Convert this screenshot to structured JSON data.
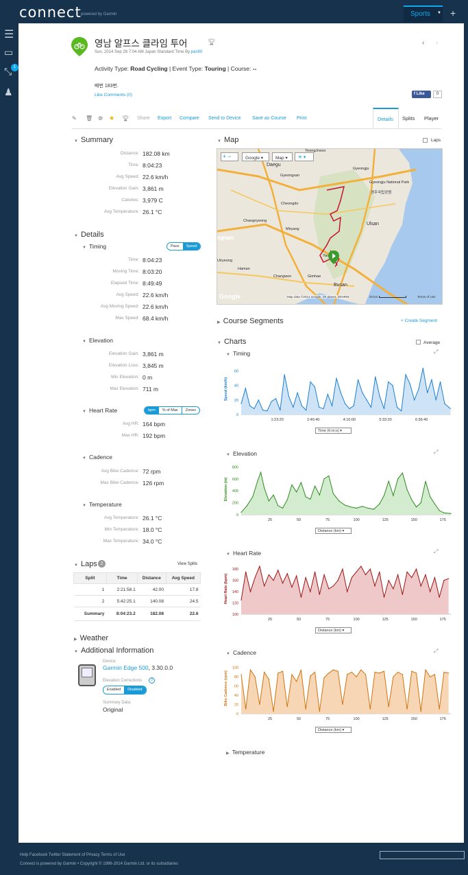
{
  "topbar": {
    "logo": "connect",
    "logo_sub": "powered by Garmin",
    "sports_label": "Sports",
    "plus_label": "+"
  },
  "sidenav": {
    "badge": "1"
  },
  "activity": {
    "title": "영남 알프스 클라임 투어",
    "datetime": "Sun, 2014 Sep 28 7:04 AM Japan Standard Time By",
    "author": "pan00",
    "meta_prefix1": "Activity Type:",
    "type": "Road Cycling",
    "meta_prefix2": "| Event Type:",
    "event": "Touring",
    "meta_prefix3": "| Course:",
    "course": "--",
    "note": "배번 183번.",
    "likes": "Like Comments (0)",
    "fb_like": "Like",
    "fb_count": "0"
  },
  "toolbar": {
    "share": "Share",
    "export": "Export",
    "compare": "Compare",
    "send": "Send to Device",
    "save_course": "Save as Course",
    "print": "Print"
  },
  "tabs": {
    "details": "Details",
    "splits": "Splits",
    "player": "Player"
  },
  "summary": {
    "title": "Summary",
    "rows": [
      {
        "label": "Distance:",
        "value": "182.08 km"
      },
      {
        "label": "Time:",
        "value": "8:04:23"
      },
      {
        "label": "Avg Speed:",
        "value": "22.6 km/h"
      },
      {
        "label": "Elevation Gain:",
        "value": "3,861 m"
      },
      {
        "label": "Calories:",
        "value": "3,979 C"
      },
      {
        "label": "Avg Temperature:",
        "value": "26.1 °C"
      }
    ]
  },
  "details": {
    "title": "Details",
    "timing": {
      "title": "Timing",
      "pace": "Pace",
      "speed": "Speed",
      "rows": [
        {
          "label": "Time:",
          "value": "8:04:23"
        },
        {
          "label": "Moving Time:",
          "value": "8:03:20"
        },
        {
          "label": "Elapsed Time:",
          "value": "8:49:49"
        },
        {
          "label": "Avg Speed:",
          "value": "22.6 km/h"
        },
        {
          "label": "Avg Moving Speed:",
          "value": "22.6 km/h"
        },
        {
          "label": "Max Speed:",
          "value": "68.4 km/h"
        }
      ]
    },
    "elevation": {
      "title": "Elevation",
      "rows": [
        {
          "label": "Elevation Gain:",
          "value": "3,861 m"
        },
        {
          "label": "Elevation Loss:",
          "value": "3,845 m"
        },
        {
          "label": "Min Elevation:",
          "value": "0 m"
        },
        {
          "label": "Max Elevation:",
          "value": "711 m"
        }
      ]
    },
    "heartrate": {
      "title": "Heart Rate",
      "bpm": "bpm",
      "pctmax": "% of Max",
      "zones": "Zones",
      "rows": [
        {
          "label": "Avg HR:",
          "value": "164 bpm"
        },
        {
          "label": "Max HR:",
          "value": "192 bpm"
        }
      ]
    },
    "cadence": {
      "title": "Cadence",
      "rows": [
        {
          "label": "Avg Bike Cadence:",
          "value": "72 rpm"
        },
        {
          "label": "Max Bike Cadence:",
          "value": "126 rpm"
        }
      ]
    },
    "temperature": {
      "title": "Temperature",
      "rows": [
        {
          "label": "Avg Temperature:",
          "value": "26.1 °C"
        },
        {
          "label": "Min Temperature:",
          "value": "18.0 °C"
        },
        {
          "label": "Max Temperature:",
          "value": "34.0 °C"
        }
      ]
    }
  },
  "laps": {
    "title": "Laps",
    "count": "2",
    "view_splits": "View Splits",
    "headers": [
      "Split",
      "Time",
      "Distance",
      "Avg Speed"
    ],
    "rows": [
      [
        "1",
        "2:21:58.1",
        "42.00",
        "17.8"
      ],
      [
        "2",
        "5:42:25.1",
        "140.08",
        "24.5"
      ]
    ],
    "summary": [
      "Summary",
      "8:04:23.2",
      "182.08",
      "22.6"
    ]
  },
  "weather": {
    "title": "Weather"
  },
  "additional": {
    "title": "Additional Information",
    "device_label": "Device:",
    "device": "Garmin Edge 500",
    "version": ", 3.30.0.0",
    "elev_corr_label": "Elevation Corrections",
    "enabled": "Enabled",
    "disabled": "Disabled",
    "summary_data_label": "Summary Data:",
    "summary_data": "Original"
  },
  "map": {
    "title": "Map",
    "laps": "Laps",
    "google": "Google",
    "map_btn": "Map",
    "places": [
      "Yeongcheon",
      "Daegu",
      "Gyeongju",
      "Gyeongsan",
      "Gyeongju National Park",
      "경주국립공원",
      "Cheongdo",
      "Changnyeong",
      "Ulsan",
      "Miryang",
      "Yangsan",
      "Uiryeong",
      "Haman",
      "Changwon",
      "Gimhae",
      "Busan",
      "ngnam"
    ],
    "attribution": "Map data ©2014 Google, SK planet, ZENRIN",
    "scale": "20 km",
    "terms": "Terms of Use"
  },
  "segments": {
    "title": "Course Segments",
    "create": "+ Create Segment"
  },
  "charts": {
    "title": "Charts",
    "average": "Average",
    "time_select": "Time (h:m:s)",
    "dist_select": "Distance (km)",
    "temperature_title": "Temperature"
  },
  "chart_data": [
    {
      "type": "area",
      "title": "Timing",
      "ylabel": "Speed (km/h)",
      "xlabel": "Time (h:m:s)",
      "ylim": [
        0,
        70
      ],
      "yticks": [
        0,
        20,
        40,
        60
      ],
      "xtick_labels": [
        "1:23:20",
        "2:46:40",
        "4:10:00",
        "5:33:20",
        "6:56:40"
      ],
      "xlim": [
        0,
        29063
      ],
      "color": "#1a7ed3",
      "fill": "#cfe3f7",
      "x": [
        0,
        600,
        1200,
        1800,
        2400,
        3000,
        3600,
        4200,
        4800,
        5400,
        6000,
        6600,
        7200,
        7800,
        8400,
        9000,
        9600,
        10200,
        10800,
        11400,
        12000,
        12600,
        13200,
        13800,
        14400,
        15000,
        15600,
        16200,
        16800,
        17400,
        18000,
        18600,
        19200,
        19800,
        20400,
        21000,
        21600,
        22200,
        22800,
        23400,
        24000,
        24600,
        25200,
        25800,
        26400,
        27000,
        27600,
        28200,
        29000
      ],
      "y": [
        15,
        36,
        12,
        8,
        20,
        6,
        5,
        18,
        22,
        6,
        55,
        25,
        10,
        30,
        12,
        6,
        45,
        38,
        10,
        8,
        28,
        12,
        50,
        30,
        15,
        8,
        12,
        48,
        30,
        20,
        10,
        52,
        25,
        8,
        45,
        40,
        10,
        5,
        55,
        42,
        20,
        35,
        64,
        30,
        48,
        20,
        45,
        15,
        8
      ]
    },
    {
      "type": "area",
      "title": "Elevation",
      "ylabel": "Elevation (m)",
      "xlabel": "Distance (km)",
      "ylim": [
        0,
        850
      ],
      "yticks": [
        0,
        200,
        400,
        600,
        800
      ],
      "xticks": [
        25,
        50,
        75,
        100,
        125,
        150,
        175
      ],
      "xlim": [
        0,
        182
      ],
      "color": "#2e8b1e",
      "fill": "#d3ebcf",
      "x": [
        0,
        5,
        10,
        14,
        17,
        20,
        24,
        28,
        32,
        36,
        40,
        44,
        48,
        52,
        56,
        60,
        64,
        68,
        72,
        76,
        80,
        85,
        90,
        95,
        100,
        105,
        110,
        115,
        120,
        124,
        128,
        132,
        136,
        140,
        144,
        148,
        152,
        156,
        160,
        164,
        168,
        172,
        176,
        182
      ],
      "y": [
        40,
        150,
        300,
        550,
        710,
        450,
        230,
        330,
        150,
        110,
        250,
        500,
        380,
        540,
        300,
        260,
        480,
        330,
        600,
        650,
        350,
        230,
        160,
        130,
        110,
        140,
        110,
        90,
        180,
        320,
        560,
        320,
        600,
        700,
        420,
        250,
        130,
        200,
        560,
        300,
        180,
        70,
        30,
        20
      ]
    },
    {
      "type": "area",
      "title": "Heart Rate",
      "ylabel": "Heart Rate (bpm)",
      "xlabel": "Distance (km)",
      "ylim": [
        100,
        190
      ],
      "yticks": [
        100,
        120,
        140,
        160,
        180
      ],
      "xticks": [
        25,
        50,
        75,
        100,
        125,
        150,
        175
      ],
      "xlim": [
        0,
        182
      ],
      "color": "#9b1111",
      "fill": "#efc9c9",
      "x": [
        0,
        4,
        8,
        12,
        16,
        20,
        24,
        28,
        32,
        36,
        40,
        44,
        48,
        52,
        56,
        60,
        64,
        68,
        72,
        76,
        80,
        84,
        88,
        92,
        96,
        100,
        104,
        108,
        112,
        116,
        120,
        124,
        128,
        132,
        136,
        140,
        144,
        148,
        152,
        156,
        160,
        164,
        168,
        172,
        176,
        180
      ],
      "y": [
        125,
        175,
        140,
        165,
        185,
        150,
        170,
        160,
        178,
        155,
        172,
        148,
        168,
        130,
        165,
        140,
        175,
        135,
        170,
        145,
        150,
        160,
        180,
        140,
        165,
        175,
        185,
        170,
        180,
        150,
        175,
        130,
        160,
        145,
        170,
        135,
        175,
        165,
        180,
        150,
        170,
        140,
        165,
        130,
        160,
        163
      ]
    },
    {
      "type": "bar",
      "title": "Cadence",
      "ylabel": "Bike Cadence (rpm)",
      "xlabel": "Distance (km)",
      "ylim": [
        0,
        110
      ],
      "yticks": [
        0,
        20,
        40,
        60,
        80,
        100
      ],
      "xticks": [
        25,
        50,
        75,
        100,
        125,
        150,
        175
      ],
      "xlim": [
        0,
        182
      ],
      "color": "#d0730f",
      "fill": "#f7d6b5",
      "x": [
        0,
        4,
        8,
        12,
        16,
        20,
        24,
        28,
        32,
        36,
        40,
        44,
        48,
        52,
        56,
        60,
        64,
        68,
        72,
        76,
        80,
        84,
        88,
        92,
        96,
        100,
        104,
        108,
        112,
        116,
        120,
        124,
        128,
        132,
        136,
        140,
        144,
        148,
        152,
        156,
        160,
        164,
        168,
        172,
        176,
        180
      ],
      "y": [
        85,
        10,
        95,
        80,
        20,
        90,
        75,
        5,
        88,
        92,
        15,
        85,
        70,
        95,
        10,
        82,
        90,
        5,
        78,
        88,
        95,
        92,
        20,
        85,
        90,
        80,
        95,
        85,
        10,
        90,
        88,
        92,
        15,
        80,
        90,
        85,
        10,
        92,
        88,
        5,
        95,
        80,
        85,
        10,
        90,
        88
      ]
    }
  ],
  "footer": {
    "links": "Help Facebook Twitter Statement of Privacy Terms of Use",
    "copy": "Connect is powered by Garmin • Copyright © 1996-2014 Garmin Ltd. or its subsidiaries"
  }
}
